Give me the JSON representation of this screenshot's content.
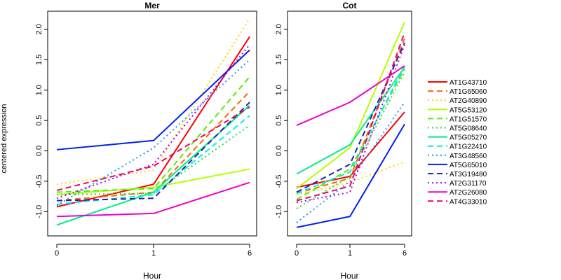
{
  "figure": {
    "ylabel": "centered expression"
  },
  "chart_data": [
    {
      "type": "line",
      "title": "Mer",
      "xlabel": "Hour",
      "ylabel": "centered expression",
      "categories": [
        "0",
        "1",
        "6"
      ],
      "ylim": [
        -1.4,
        2.3
      ],
      "yticks": [
        -1.0,
        -0.5,
        0.0,
        0.5,
        1.0,
        1.5,
        2.0
      ],
      "grid": false,
      "series": [
        {
          "name": "AT1G43710",
          "color": "#ff0000",
          "dash": "solid",
          "values": [
            -0.92,
            -0.55,
            1.88
          ]
        },
        {
          "name": "AT1G65060",
          "color": "#ff6600",
          "dash": "dashed",
          "values": [
            -0.82,
            -0.68,
            0.98
          ]
        },
        {
          "name": "AT2G40890",
          "color": "#ffd700",
          "dash": "dotted",
          "values": [
            -0.55,
            -0.32,
            2.18
          ]
        },
        {
          "name": "AT5G53120",
          "color": "#b3ff00",
          "dash": "solid",
          "values": [
            -0.72,
            -0.6,
            -0.3
          ]
        },
        {
          "name": "AT1G51570",
          "color": "#55ee00",
          "dash": "dashed",
          "values": [
            -0.68,
            -0.62,
            1.22
          ]
        },
        {
          "name": "AT5G08640",
          "color": "#33dd33",
          "dash": "dotted",
          "values": [
            -0.72,
            -0.7,
            0.42
          ]
        },
        {
          "name": "AT5G05270",
          "color": "#00ee88",
          "dash": "solid",
          "values": [
            -1.22,
            -0.68,
            0.75
          ]
        },
        {
          "name": "AT1G22410",
          "color": "#00eeee",
          "dash": "dashed",
          "values": [
            -0.88,
            -0.72,
            0.58
          ]
        },
        {
          "name": "AT3G48560",
          "color": "#2299ee",
          "dash": "dotted",
          "values": [
            -0.9,
            0.05,
            1.5
          ]
        },
        {
          "name": "AT5G65010",
          "color": "#0022ee",
          "dash": "solid",
          "values": [
            0.02,
            0.17,
            1.66
          ]
        },
        {
          "name": "AT3G19480",
          "color": "#2222aa",
          "dash": "dashed",
          "values": [
            -0.82,
            -0.78,
            0.8
          ]
        },
        {
          "name": "AT2G31170",
          "color": "#aa00ee",
          "dash": "dotted",
          "values": [
            -0.78,
            -0.22,
            1.75
          ]
        },
        {
          "name": "AT2G26080",
          "color": "#ee00cc",
          "dash": "solid",
          "values": [
            -1.08,
            -1.03,
            -0.52
          ]
        },
        {
          "name": "AT4G33010",
          "color": "#ee0066",
          "dash": "dashed",
          "values": [
            -0.65,
            -0.25,
            0.72
          ]
        }
      ]
    },
    {
      "type": "line",
      "title": "Cot",
      "xlabel": "Hour",
      "ylabel": "",
      "categories": [
        "0",
        "1",
        "6"
      ],
      "ylim": [
        -1.4,
        2.3
      ],
      "yticks": [
        -1.0,
        -0.5,
        0.0,
        0.5,
        1.0,
        1.5,
        2.0
      ],
      "grid": false,
      "series": [
        {
          "name": "AT1G43710",
          "color": "#ff0000",
          "dash": "solid",
          "values": [
            -0.6,
            -0.42,
            0.64
          ]
        },
        {
          "name": "AT1G65060",
          "color": "#ff6600",
          "dash": "dashed",
          "values": [
            -0.7,
            -0.45,
            1.85
          ]
        },
        {
          "name": "AT2G40890",
          "color": "#ffd700",
          "dash": "dotted",
          "values": [
            -0.72,
            -0.52,
            -0.18
          ]
        },
        {
          "name": "AT5G53120",
          "color": "#b3ff00",
          "dash": "solid",
          "values": [
            -0.62,
            0.05,
            2.12
          ]
        },
        {
          "name": "AT1G51570",
          "color": "#55ee00",
          "dash": "dashed",
          "values": [
            -0.8,
            -0.3,
            1.35
          ]
        },
        {
          "name": "AT5G08640",
          "color": "#33dd33",
          "dash": "dotted",
          "values": [
            -0.95,
            -0.42,
            1.3
          ]
        },
        {
          "name": "AT5G05270",
          "color": "#00ee88",
          "dash": "solid",
          "values": [
            -0.38,
            0.1,
            1.38
          ]
        },
        {
          "name": "AT1G22410",
          "color": "#00eeee",
          "dash": "dashed",
          "values": [
            -0.7,
            -0.35,
            1.4
          ]
        },
        {
          "name": "AT3G48560",
          "color": "#2299ee",
          "dash": "dotted",
          "values": [
            -1.18,
            -0.5,
            0.8
          ]
        },
        {
          "name": "AT5G65010",
          "color": "#0022ee",
          "dash": "solid",
          "values": [
            -1.26,
            -1.08,
            0.44
          ]
        },
        {
          "name": "AT3G19480",
          "color": "#2222aa",
          "dash": "dashed",
          "values": [
            -0.68,
            -0.22,
            1.78
          ]
        },
        {
          "name": "AT2G31170",
          "color": "#aa00ee",
          "dash": "dotted",
          "values": [
            -0.85,
            -0.68,
            1.75
          ]
        },
        {
          "name": "AT2G26080",
          "color": "#ee00cc",
          "dash": "solid",
          "values": [
            0.42,
            0.8,
            1.4
          ]
        },
        {
          "name": "AT4G33010",
          "color": "#ee0066",
          "dash": "dashed",
          "values": [
            -0.82,
            -0.58,
            1.95
          ]
        }
      ]
    }
  ]
}
